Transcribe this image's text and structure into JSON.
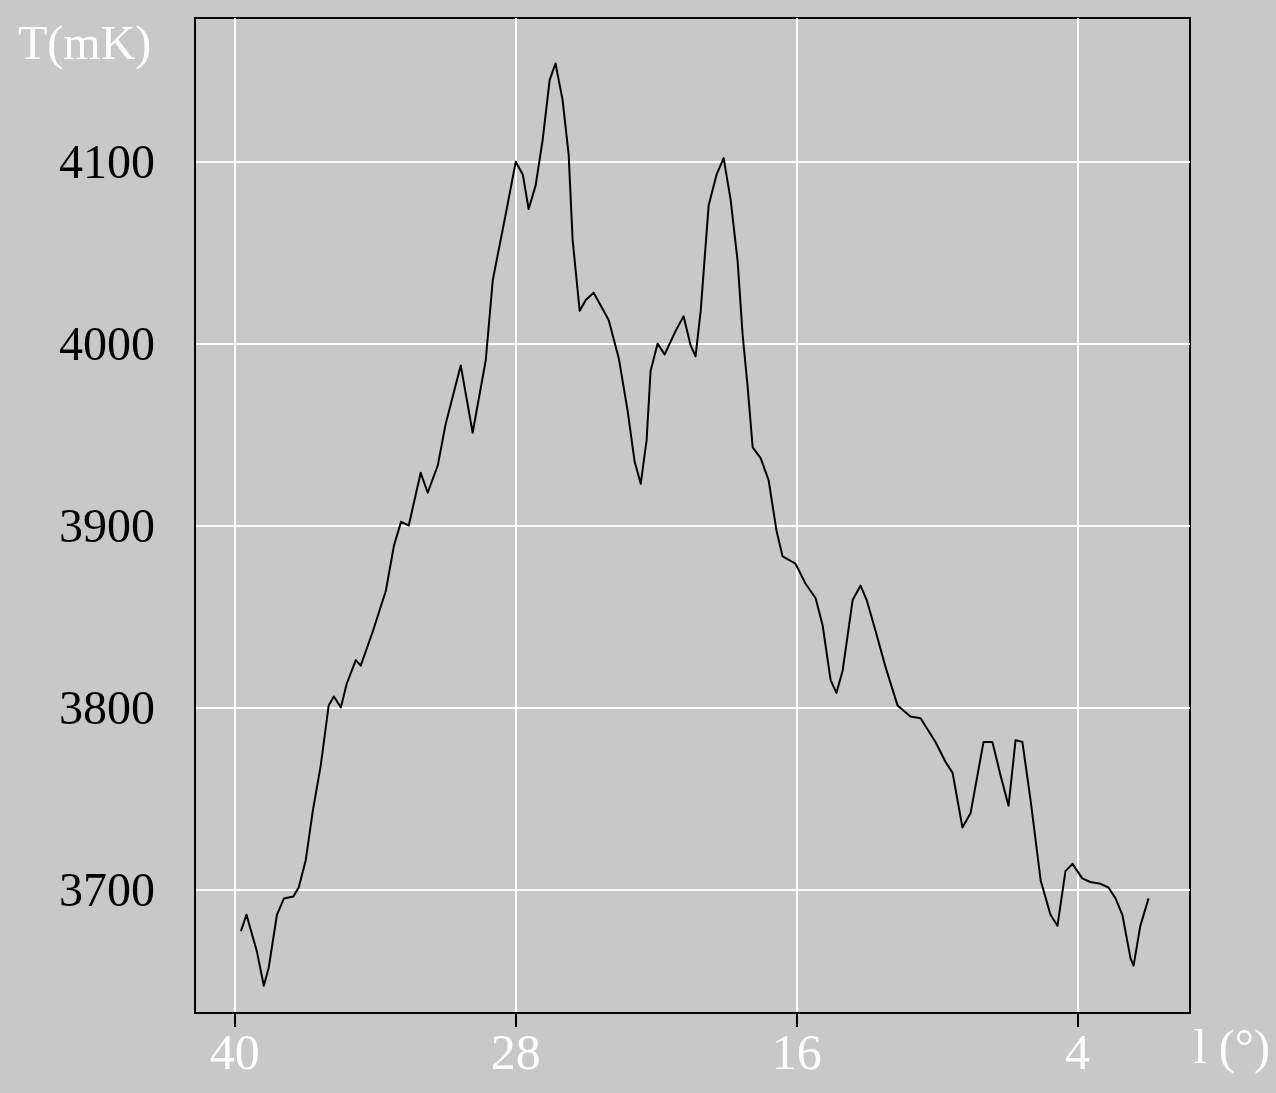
{
  "chart_data": {
    "type": "line",
    "xlabel": "l (°)",
    "ylabel": "T(mK)",
    "x": [
      39.74,
      39.5,
      39.06,
      38.76,
      38.55,
      38.2,
      37.9,
      37.5,
      37.27,
      36.97,
      36.67,
      36.33,
      35.99,
      35.77,
      35.47,
      35.22,
      34.83,
      34.62,
      34.1,
      33.55,
      33.2,
      32.9,
      32.57,
      32.06,
      31.76,
      31.33,
      30.99,
      30.35,
      29.84,
      29.28,
      28.98,
      28.43,
      28.0,
      27.7,
      27.45,
      27.15,
      26.85,
      26.55,
      26.3,
      26.0,
      25.74,
      25.57,
      25.27,
      25.01,
      24.67,
      24.46,
      24.03,
      23.6,
      23.22,
      22.92,
      22.66,
      22.41,
      22.24,
      21.94,
      21.64,
      21.17,
      20.83,
      20.53,
      20.32,
      20.1,
      19.76,
      19.42,
      19.12,
      18.82,
      18.52,
      18.31,
      18.1,
      17.88,
      17.54,
      17.2,
      16.86,
      16.6,
      16.05,
      15.62,
      15.19,
      14.89,
      14.55,
      14.3,
      14.04,
      13.61,
      13.27,
      13.01,
      12.63,
      12.2,
      11.69,
      11.14,
      10.71,
      10.07,
      9.64,
      9.34,
      8.92,
      8.57,
      8.02,
      7.64,
      7.3,
      6.95,
      6.65,
      6.36,
      6.01,
      5.58,
      5.16,
      4.86,
      4.52,
      4.22,
      3.8,
      3.46,
      3.02,
      2.68,
      2.38,
      2.09,
      1.74,
      1.61,
      1.32,
      0.97
    ],
    "series": [
      {
        "color": "#000000",
        "values": [
          3677,
          3686,
          3666,
          3647,
          3657,
          3686,
          3695,
          3696,
          3701,
          3716,
          3743,
          3768,
          3801,
          3806,
          3800,
          3813,
          3826,
          3823,
          3842,
          3864,
          3889,
          3902,
          3900,
          3929,
          3918,
          3933,
          3956,
          3988,
          3951,
          3991,
          4035,
          4071,
          4100,
          4093,
          4074,
          4087,
          4112,
          4145,
          4154,
          4134,
          4104,
          4057,
          4018,
          4024,
          4028,
          4023,
          4013,
          3992,
          3963,
          3935,
          3923,
          3947,
          3985,
          4000,
          3994,
          4007,
          4015,
          3999,
          3993,
          4018,
          4076,
          4093,
          4102,
          4079,
          4045,
          4005,
          3977,
          3943,
          3937,
          3925,
          3897,
          3883,
          3879,
          3868,
          3860,
          3845,
          3815,
          3808,
          3820,
          3859,
          3867,
          3859,
          3842,
          3822,
          3801,
          3795,
          3794,
          3781,
          3770,
          3764,
          3734,
          3742,
          3781,
          3781,
          3763,
          3746,
          3782,
          3781,
          3749,
          3705,
          3686,
          3680,
          3710,
          3714,
          3706,
          3704,
          3703,
          3701,
          3695,
          3686,
          3662,
          3658,
          3680,
          3695
        ]
      }
    ],
    "xlim": [
      41.7,
      -0.8
    ],
    "xticks": [
      40,
      28,
      16,
      4
    ],
    "ylim": [
      3632,
      4179
    ],
    "yticks": [
      3700,
      3800,
      3900,
      4000,
      4100
    ],
    "grid": true,
    "marker": "none",
    "line_style": "solid"
  }
}
